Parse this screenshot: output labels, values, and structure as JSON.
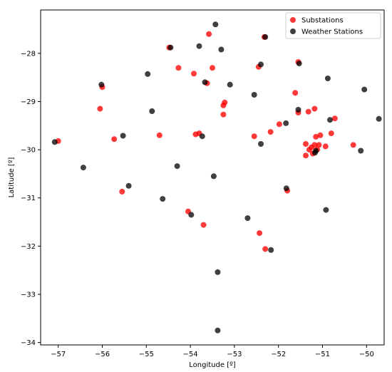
{
  "chart_data": {
    "type": "scatter",
    "xlabel": "Longitude [º]",
    "ylabel": "Latitude [º]",
    "xlim": [
      -57.4,
      -49.6
    ],
    "ylim": [
      -34.05,
      -27.1
    ],
    "x_ticks": [
      -57,
      -56,
      -55,
      -54,
      -53,
      -52,
      -51,
      -50
    ],
    "y_ticks": [
      -28,
      -29,
      -30,
      -31,
      -32,
      -33,
      -34
    ],
    "grid": false,
    "legend_position": "top-right",
    "series": [
      {
        "name": "Substations",
        "color": "#ff0000",
        "points": [
          [
            -57.0,
            -29.82
          ],
          [
            -56.05,
            -29.15
          ],
          [
            -56.0,
            -28.7
          ],
          [
            -55.73,
            -29.78
          ],
          [
            -55.55,
            -30.87
          ],
          [
            -54.7,
            -29.7
          ],
          [
            -54.48,
            -27.88
          ],
          [
            -54.27,
            -28.3
          ],
          [
            -54.05,
            -31.28
          ],
          [
            -53.92,
            -28.42
          ],
          [
            -53.88,
            -29.68
          ],
          [
            -53.8,
            -29.66
          ],
          [
            -53.7,
            -31.56
          ],
          [
            -53.62,
            -28.62
          ],
          [
            -53.58,
            -27.6
          ],
          [
            -53.5,
            -28.3
          ],
          [
            -53.25,
            -29.27
          ],
          [
            -53.25,
            -29.08
          ],
          [
            -53.22,
            -29.02
          ],
          [
            -52.55,
            -29.72
          ],
          [
            -52.45,
            -28.28
          ],
          [
            -52.43,
            -31.73
          ],
          [
            -52.32,
            -27.66
          ],
          [
            -52.3,
            -32.06
          ],
          [
            -52.18,
            -29.63
          ],
          [
            -51.98,
            -29.47
          ],
          [
            -51.8,
            -30.85
          ],
          [
            -51.62,
            -28.82
          ],
          [
            -51.55,
            -28.18
          ],
          [
            -51.55,
            -29.23
          ],
          [
            -51.38,
            -29.88
          ],
          [
            -51.38,
            -30.12
          ],
          [
            -51.32,
            -29.21
          ],
          [
            -51.3,
            -30.0
          ],
          [
            -51.25,
            -29.95
          ],
          [
            -51.22,
            -30.08
          ],
          [
            -51.18,
            -29.9
          ],
          [
            -51.18,
            -29.15
          ],
          [
            -51.15,
            -29.73
          ],
          [
            -51.12,
            -30.0
          ],
          [
            -51.08,
            -29.9
          ],
          [
            -51.05,
            -29.7
          ],
          [
            -50.93,
            -29.93
          ],
          [
            -50.8,
            -29.66
          ],
          [
            -50.72,
            -29.35
          ],
          [
            -50.3,
            -29.9
          ]
        ]
      },
      {
        "name": "Weather Stations",
        "color": "#000000",
        "points": [
          [
            -57.08,
            -29.84
          ],
          [
            -56.43,
            -30.37
          ],
          [
            -56.02,
            -28.65
          ],
          [
            -55.53,
            -29.71
          ],
          [
            -55.4,
            -30.75
          ],
          [
            -54.97,
            -28.43
          ],
          [
            -54.87,
            -29.2
          ],
          [
            -54.63,
            -31.02
          ],
          [
            -54.45,
            -27.88
          ],
          [
            -54.3,
            -30.34
          ],
          [
            -53.98,
            -31.35
          ],
          [
            -53.8,
            -27.85
          ],
          [
            -53.73,
            -29.72
          ],
          [
            -53.67,
            -28.6
          ],
          [
            -53.47,
            -30.55
          ],
          [
            -53.43,
            -27.4
          ],
          [
            -53.38,
            -32.54
          ],
          [
            -53.38,
            -33.75
          ],
          [
            -53.3,
            -27.92
          ],
          [
            -53.1,
            -28.65
          ],
          [
            -52.7,
            -31.42
          ],
          [
            -52.55,
            -28.86
          ],
          [
            -52.4,
            -29.88
          ],
          [
            -52.4,
            -28.23
          ],
          [
            -52.3,
            -27.66
          ],
          [
            -52.17,
            -32.08
          ],
          [
            -51.83,
            -29.45
          ],
          [
            -51.82,
            -30.8
          ],
          [
            -51.55,
            -29.17
          ],
          [
            -51.53,
            -28.21
          ],
          [
            -51.17,
            -30.06
          ],
          [
            -51.15,
            -30.02
          ],
          [
            -50.92,
            -31.25
          ],
          [
            -50.88,
            -28.52
          ],
          [
            -50.83,
            -29.38
          ],
          [
            -50.13,
            -30.02
          ],
          [
            -50.05,
            -28.75
          ],
          [
            -49.72,
            -29.36
          ]
        ]
      }
    ]
  }
}
